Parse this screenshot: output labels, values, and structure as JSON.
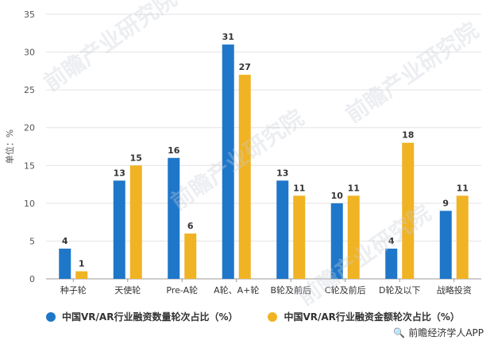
{
  "chart_data": {
    "type": "bar",
    "ylabel": "单位：%",
    "ylim": [
      0,
      35
    ],
    "yticks": [
      0,
      5,
      10,
      15,
      20,
      25,
      30,
      35
    ],
    "grid": true,
    "categories": [
      "种子轮",
      "天使轮",
      "Pre-A轮",
      "A轮、A+轮",
      "B轮及前后",
      "C轮及前后",
      "D轮及以下",
      "战略投资"
    ],
    "series": [
      {
        "name": "中国VR/AR行业融资数量轮次占比（%）",
        "color": "#1f77c9",
        "values": [
          4,
          13,
          16,
          31,
          13,
          10,
          4,
          9
        ]
      },
      {
        "name": "中国VR/AR行业融资金额轮次占比（%）",
        "color": "#f0b323",
        "values": [
          1,
          15,
          6,
          27,
          11,
          11,
          18,
          11
        ]
      }
    ],
    "legend_position": "bottom-left"
  },
  "source": "前瞻经济学人APP",
  "watermark": "前瞻产业研究院"
}
